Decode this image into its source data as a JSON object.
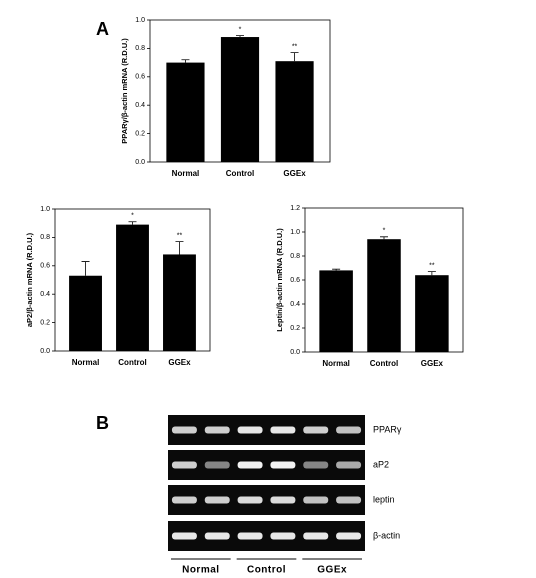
{
  "panels": [
    "A",
    "B"
  ],
  "chart_data": [
    {
      "type": "bar",
      "ylabel": "PPARγ/β-actin mRNA (R.D.U.)",
      "categories": [
        "Normal",
        "Control",
        "GGEx"
      ],
      "values": [
        0.7,
        0.88,
        0.71
      ],
      "errors": [
        0.02,
        0.01,
        0.06
      ],
      "color": "#000000",
      "ylim": [
        0,
        1
      ],
      "yticks": [
        {
          "value": 0,
          "label": "0.0"
        },
        0.2,
        0.4,
        0.6,
        0.8,
        {
          "value": 1,
          "label": "1.0"
        }
      ],
      "annotations": [
        {
          "x": "Control",
          "text": "*"
        },
        {
          "x": "GGEx",
          "text": "**"
        }
      ]
    },
    {
      "type": "bar",
      "ylabel": "aP2/β-actin mRNA (R.D.U.)",
      "categories": [
        "Normal",
        "Control",
        "GGEx"
      ],
      "values": [
        0.53,
        0.89,
        0.68
      ],
      "errors": [
        0.1,
        0.02,
        0.09
      ],
      "color": "#000000",
      "ylim": [
        0,
        1
      ],
      "yticks": [
        {
          "value": 0,
          "label": "0.0"
        },
        0.2,
        0.4,
        0.6,
        0.8,
        {
          "value": 1,
          "label": "1.0"
        }
      ],
      "annotations": [
        {
          "x": "Control",
          "text": "*"
        },
        {
          "x": "GGEx",
          "text": "**"
        }
      ]
    },
    {
      "type": "bar",
      "ylabel": "Leptin/β-actin mRNA (R.D.U.)",
      "categories": [
        "Normal",
        "Control",
        "GGEx"
      ],
      "values": [
        0.68,
        0.94,
        0.64
      ],
      "errors": [
        0.01,
        0.02,
        0.03
      ],
      "color": "#000000",
      "ylim": [
        0,
        1.2
      ],
      "yticks": [
        {
          "value": 0,
          "label": "0.0"
        },
        0.2,
        0.4,
        0.6,
        0.8,
        {
          "value": 1,
          "label": "1.0"
        },
        1.2
      ],
      "annotations": [
        {
          "x": "Control",
          "text": "*"
        },
        {
          "x": "GGEx",
          "text": "**"
        }
      ]
    }
  ],
  "gel": {
    "rows": [
      "PPARγ",
      "aP2",
      "leptin",
      "β-actin"
    ],
    "groups": [
      "Normal",
      "Control",
      "GGEx"
    ]
  }
}
